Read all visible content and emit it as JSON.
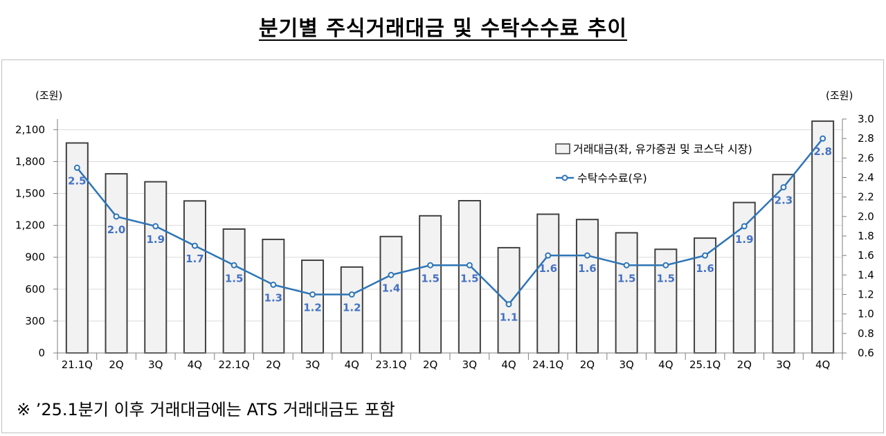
{
  "title": "분기별 주식거래대금 및 수탁수수료 추이",
  "footnote": "※ ’25.1분기 이후 거래대금에는 ATS 거래대금도 포함",
  "chart_data": {
    "type": "bar",
    "categories": [
      "21.1Q",
      "2Q",
      "3Q",
      "4Q",
      "22.1Q",
      "2Q",
      "3Q",
      "4Q",
      "23.1Q",
      "2Q",
      "3Q",
      "4Q",
      "24.1Q",
      "2Q",
      "3Q",
      "4Q",
      "25.1Q",
      "2Q",
      "3Q",
      "4Q"
    ],
    "series": [
      {
        "name": "거래대금(좌, 유가증권 및 코스닥 시장)",
        "type": "bar",
        "axis": "left",
        "values": [
          1975,
          1685,
          1610,
          1430,
          1165,
          1068,
          872,
          808,
          1095,
          1290,
          1432,
          990,
          1305,
          1255,
          1130,
          975,
          1080,
          1415,
          1678,
          2180
        ]
      },
      {
        "name": "수탁수수료(우)",
        "type": "line",
        "axis": "right",
        "values": [
          2.5,
          2.0,
          1.9,
          1.7,
          1.5,
          1.3,
          1.2,
          1.2,
          1.4,
          1.5,
          1.5,
          1.1,
          1.6,
          1.6,
          1.5,
          1.5,
          1.6,
          1.9,
          2.3,
          2.8
        ],
        "labels": [
          "2.5",
          "2.0",
          "1.9",
          "1.7",
          "1.5",
          "1.3",
          "1.2",
          "1.2",
          "1.4",
          "1.5",
          "1.5",
          "1.1",
          "1.6",
          "1.6",
          "1.5",
          "1.5",
          "1.6",
          "1.9",
          "2.3",
          "2.8"
        ]
      }
    ],
    "yleft": {
      "unit": "(조원)",
      "range": [
        0,
        2200
      ],
      "ticks": [
        0,
        300,
        600,
        900,
        1200,
        1500,
        1800,
        2100
      ],
      "tick_labels": [
        "0",
        "300",
        "600",
        "900",
        "1,200",
        "1,500",
        "1,800",
        "2,100"
      ]
    },
    "yright": {
      "unit": "(조원)",
      "range": [
        0.6,
        3.0
      ],
      "ticks": [
        0.6,
        0.8,
        1.0,
        1.2,
        1.4,
        1.6,
        1.8,
        2.0,
        2.2,
        2.4,
        2.6,
        2.8,
        3.0
      ],
      "tick_labels": [
        "0.6",
        "0.8",
        "1.0",
        "1.2",
        "1.4",
        "1.6",
        "1.8",
        "2.0",
        "2.2",
        "2.4",
        "2.6",
        "2.8",
        "3.0"
      ]
    },
    "grid": true,
    "legend": "top-right",
    "colors": {
      "bar_fill": "#f2f2f2",
      "bar_stroke": "#404040",
      "line": "#2e75b6",
      "label": "#4472c4",
      "grid": "#d9d9d9"
    }
  }
}
